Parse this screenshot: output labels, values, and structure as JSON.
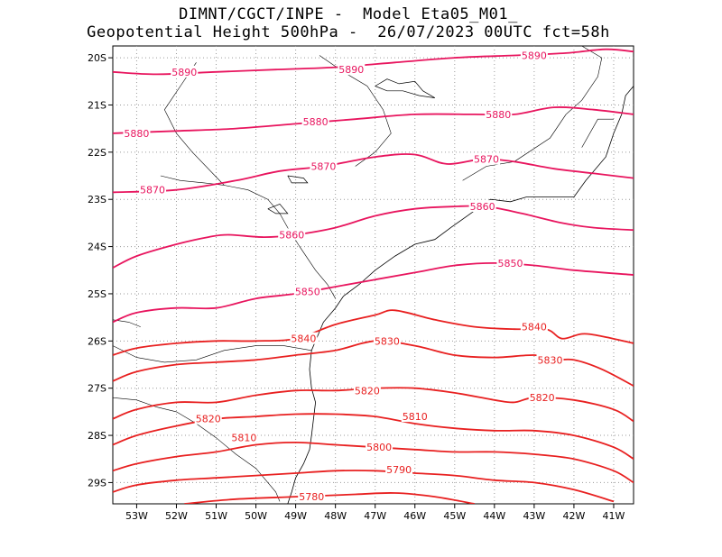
{
  "title": {
    "line1": "DIMNT/CGCT/INPE -  Model Eta05_M01_",
    "line2": "Geopotential Height 500hPa -  26/07/2023 00UTC fct=58h"
  },
  "colors": {
    "magenta": "#e8155e",
    "red": "#e82020",
    "coast": "#000000",
    "grid": "#9a9a9a"
  },
  "map": {
    "lon_range": [
      -53.6,
      -40.5
    ],
    "lat_range": [
      -29.45,
      -19.75
    ],
    "lon_ticks": [
      {
        "v": -53,
        "label": "53W"
      },
      {
        "v": -52,
        "label": "52W"
      },
      {
        "v": -51,
        "label": "51W"
      },
      {
        "v": -50,
        "label": "50W"
      },
      {
        "v": -49,
        "label": "49W"
      },
      {
        "v": -48,
        "label": "48W"
      },
      {
        "v": -47,
        "label": "47W"
      },
      {
        "v": -46,
        "label": "46W"
      },
      {
        "v": -45,
        "label": "45W"
      },
      {
        "v": -44,
        "label": "44W"
      },
      {
        "v": -43,
        "label": "43W"
      },
      {
        "v": -42,
        "label": "42W"
      },
      {
        "v": -41,
        "label": "41W"
      }
    ],
    "lat_ticks": [
      {
        "v": -20,
        "label": "20S"
      },
      {
        "v": -21,
        "label": "21S"
      },
      {
        "v": -22,
        "label": "22S"
      },
      {
        "v": -23,
        "label": "23S"
      },
      {
        "v": -24,
        "label": "24S"
      },
      {
        "v": -25,
        "label": "25S"
      },
      {
        "v": -26,
        "label": "26S"
      },
      {
        "v": -27,
        "label": "27S"
      },
      {
        "v": -28,
        "label": "28S"
      },
      {
        "v": -29,
        "label": "29S"
      }
    ]
  },
  "contours": [
    {
      "value": 5890,
      "color": "magenta",
      "points": [
        [
          -53.6,
          -20.3
        ],
        [
          -52.5,
          -20.35
        ],
        [
          -51,
          -20.3
        ],
        [
          -49.5,
          -20.25
        ],
        [
          -48,
          -20.2
        ],
        [
          -46.5,
          -20.1
        ],
        [
          -45,
          -20.0
        ],
        [
          -43.5,
          -19.95
        ],
        [
          -42.2,
          -19.9
        ],
        [
          -41.2,
          -19.82
        ],
        [
          -40.5,
          -19.87
        ]
      ],
      "labels": [
        {
          "text": "5890",
          "at": [
            -51.8,
            -20.3
          ]
        },
        {
          "text": "5890",
          "at": [
            -47.6,
            -20.25
          ]
        },
        {
          "text": "5890",
          "at": [
            -43.0,
            -19.95
          ]
        }
      ]
    },
    {
      "value": 5880,
      "color": "magenta",
      "points": [
        [
          -53.6,
          -21.6
        ],
        [
          -52,
          -21.55
        ],
        [
          -50.5,
          -21.5
        ],
        [
          -49,
          -21.4
        ],
        [
          -47.5,
          -21.3
        ],
        [
          -46,
          -21.2
        ],
        [
          -44.5,
          -21.2
        ],
        [
          -43.5,
          -21.2
        ],
        [
          -42.5,
          -21.05
        ],
        [
          -41.5,
          -21.1
        ],
        [
          -40.5,
          -21.2
        ]
      ],
      "labels": [
        {
          "text": "5880",
          "at": [
            -53.0,
            -21.6
          ]
        },
        {
          "text": "5880",
          "at": [
            -48.5,
            -21.35
          ]
        },
        {
          "text": "5880",
          "at": [
            -43.9,
            -21.2
          ]
        }
      ]
    },
    {
      "value": 5870,
      "color": "magenta",
      "points": [
        [
          -53.6,
          -22.85
        ],
        [
          -52,
          -22.8
        ],
        [
          -50.5,
          -22.6
        ],
        [
          -49.4,
          -22.4
        ],
        [
          -48.3,
          -22.3
        ],
        [
          -47,
          -22.1
        ],
        [
          -46,
          -22.05
        ],
        [
          -45.2,
          -22.25
        ],
        [
          -44.3,
          -22.15
        ],
        [
          -43.5,
          -22.2
        ],
        [
          -42.5,
          -22.35
        ],
        [
          -41.5,
          -22.45
        ],
        [
          -40.5,
          -22.55
        ]
      ],
      "labels": [
        {
          "text": "5870",
          "at": [
            -52.6,
            -22.8
          ]
        },
        {
          "text": "5870",
          "at": [
            -48.3,
            -22.3
          ]
        },
        {
          "text": "5870",
          "at": [
            -44.2,
            -22.15
          ]
        }
      ]
    },
    {
      "value": 5860,
      "color": "magenta",
      "points": [
        [
          -53.6,
          -24.45
        ],
        [
          -53,
          -24.2
        ],
        [
          -52,
          -23.95
        ],
        [
          -51.2,
          -23.8
        ],
        [
          -50.7,
          -23.75
        ],
        [
          -49.8,
          -23.8
        ],
        [
          -49,
          -23.75
        ],
        [
          -48,
          -23.6
        ],
        [
          -47,
          -23.35
        ],
        [
          -46,
          -23.2
        ],
        [
          -45,
          -23.15
        ],
        [
          -44.2,
          -23.15
        ],
        [
          -43.3,
          -23.3
        ],
        [
          -42.3,
          -23.5
        ],
        [
          -41.5,
          -23.6
        ],
        [
          -40.5,
          -23.65
        ]
      ],
      "labels": [
        {
          "text": "5860",
          "at": [
            -49.1,
            -23.75
          ]
        },
        {
          "text": "5860",
          "at": [
            -44.3,
            -23.15
          ]
        }
      ]
    },
    {
      "value": 5850,
      "color": "magenta",
      "points": [
        [
          -53.6,
          -25.6
        ],
        [
          -53,
          -25.4
        ],
        [
          -52,
          -25.3
        ],
        [
          -51,
          -25.3
        ],
        [
          -50,
          -25.1
        ],
        [
          -49,
          -25.0
        ],
        [
          -48,
          -24.85
        ],
        [
          -47,
          -24.7
        ],
        [
          -46,
          -24.55
        ],
        [
          -45,
          -24.4
        ],
        [
          -44,
          -24.35
        ],
        [
          -43,
          -24.4
        ],
        [
          -42,
          -24.5
        ],
        [
          -40.5,
          -24.6
        ]
      ],
      "labels": [
        {
          "text": "5850",
          "at": [
            -48.7,
            -24.95
          ]
        },
        {
          "text": "5850",
          "at": [
            -43.6,
            -24.35
          ]
        }
      ]
    },
    {
      "value": 5840,
      "color": "red",
      "points": [
        [
          -53.6,
          -26.3
        ],
        [
          -53,
          -26.15
        ],
        [
          -52,
          -26.05
        ],
        [
          -51,
          -26.0
        ],
        [
          -50,
          -26.0
        ],
        [
          -49,
          -25.95
        ],
        [
          -48,
          -25.65
        ],
        [
          -47,
          -25.45
        ],
        [
          -46.5,
          -25.35
        ],
        [
          -45.5,
          -25.55
        ],
        [
          -44.5,
          -25.7
        ],
        [
          -43.5,
          -25.75
        ],
        [
          -42.7,
          -25.75
        ],
        [
          -42.3,
          -25.95
        ],
        [
          -41.8,
          -25.85
        ],
        [
          -41.3,
          -25.9
        ],
        [
          -40.5,
          -26.05
        ]
      ],
      "labels": [
        {
          "text": "5840",
          "at": [
            -48.8,
            -25.95
          ]
        },
        {
          "text": "5840",
          "at": [
            -43.0,
            -25.7
          ]
        }
      ]
    },
    {
      "value": 5830,
      "color": "red",
      "points": [
        [
          -53.6,
          -26.85
        ],
        [
          -53,
          -26.65
        ],
        [
          -52,
          -26.5
        ],
        [
          -51,
          -26.45
        ],
        [
          -50,
          -26.4
        ],
        [
          -49,
          -26.3
        ],
        [
          -48,
          -26.2
        ],
        [
          -47,
          -26.0
        ],
        [
          -46,
          -26.1
        ],
        [
          -45,
          -26.3
        ],
        [
          -44,
          -26.35
        ],
        [
          -43,
          -26.3
        ],
        [
          -42.5,
          -26.4
        ],
        [
          -42,
          -26.4
        ],
        [
          -41.3,
          -26.6
        ],
        [
          -40.5,
          -26.95
        ]
      ],
      "labels": [
        {
          "text": "5830",
          "at": [
            -46.7,
            -26.0
          ]
        },
        {
          "text": "5830",
          "at": [
            -42.6,
            -26.4
          ]
        }
      ]
    },
    {
      "value": 5820,
      "color": "red",
      "points": [
        [
          -53.6,
          -27.65
        ],
        [
          -53,
          -27.45
        ],
        [
          -52,
          -27.3
        ],
        [
          -51,
          -27.3
        ],
        [
          -50,
          -27.15
        ],
        [
          -49,
          -27.05
        ],
        [
          -48,
          -27.05
        ],
        [
          -47,
          -27.0
        ],
        [
          -46,
          -27.0
        ],
        [
          -45,
          -27.1
        ],
        [
          -44,
          -27.25
        ],
        [
          -43.5,
          -27.3
        ],
        [
          -43,
          -27.2
        ],
        [
          -42,
          -27.25
        ],
        [
          -41,
          -27.45
        ],
        [
          -40.5,
          -27.7
        ]
      ],
      "labels": [
        {
          "text": "5820",
          "at": [
            -51.2,
            -27.65
          ]
        },
        {
          "text": "5820",
          "at": [
            -47.2,
            -27.05
          ]
        },
        {
          "text": "5820",
          "at": [
            -42.8,
            -27.2
          ]
        }
      ]
    },
    {
      "value": 5810,
      "color": "red",
      "points": [
        [
          -53.6,
          -28.2
        ],
        [
          -53,
          -28.0
        ],
        [
          -52,
          -27.8
        ],
        [
          -51,
          -27.65
        ],
        [
          -50,
          -27.6
        ],
        [
          -49,
          -27.55
        ],
        [
          -48,
          -27.55
        ],
        [
          -47,
          -27.6
        ],
        [
          -46,
          -27.75
        ],
        [
          -45,
          -27.85
        ],
        [
          -44,
          -27.9
        ],
        [
          -43,
          -27.9
        ],
        [
          -42,
          -28.0
        ],
        [
          -41,
          -28.25
        ],
        [
          -40.5,
          -28.5
        ]
      ],
      "labels": [
        {
          "text": "5810",
          "at": [
            -50.3,
            -28.05
          ]
        },
        {
          "text": "5810",
          "at": [
            -46.0,
            -27.6
          ]
        }
      ]
    },
    {
      "value": 5800,
      "color": "red",
      "points": [
        [
          -53.6,
          -28.75
        ],
        [
          -53,
          -28.6
        ],
        [
          -52,
          -28.45
        ],
        [
          -51,
          -28.35
        ],
        [
          -50,
          -28.2
        ],
        [
          -49,
          -28.15
        ],
        [
          -48,
          -28.2
        ],
        [
          -47,
          -28.25
        ],
        [
          -46,
          -28.3
        ],
        [
          -45,
          -28.35
        ],
        [
          -44,
          -28.35
        ],
        [
          -43,
          -28.4
        ],
        [
          -42,
          -28.5
        ],
        [
          -41,
          -28.75
        ],
        [
          -40.5,
          -29.0
        ]
      ],
      "labels": [
        {
          "text": "5800",
          "at": [
            -46.9,
            -28.25
          ]
        }
      ]
    },
    {
      "value": 5790,
      "color": "red",
      "points": [
        [
          -53.6,
          -29.2
        ],
        [
          -53,
          -29.05
        ],
        [
          -52,
          -28.95
        ],
        [
          -51,
          -28.9
        ],
        [
          -50,
          -28.85
        ],
        [
          -49,
          -28.8
        ],
        [
          -48,
          -28.75
        ],
        [
          -47,
          -28.75
        ],
        [
          -46,
          -28.8
        ],
        [
          -45,
          -28.85
        ],
        [
          -44,
          -28.95
        ],
        [
          -43,
          -29.0
        ],
        [
          -42,
          -29.15
        ],
        [
          -41,
          -29.4
        ]
      ],
      "labels": [
        {
          "text": "5790",
          "at": [
            -46.4,
            -28.72
          ]
        }
      ]
    },
    {
      "value": 5780,
      "color": "red",
      "points": [
        [
          -51.8,
          -29.45
        ],
        [
          -50.5,
          -29.35
        ],
        [
          -49,
          -29.3
        ],
        [
          -47.5,
          -29.25
        ],
        [
          -46.5,
          -29.22
        ],
        [
          -45.5,
          -29.3
        ],
        [
          -44.5,
          -29.45
        ]
      ],
      "labels": [
        {
          "text": "5780",
          "at": [
            -48.6,
            -29.3
          ]
        }
      ]
    }
  ],
  "coastline": [
    [
      -49.2,
      -29.45
    ],
    [
      -49.1,
      -29.2
    ],
    [
      -49.0,
      -28.9
    ],
    [
      -48.8,
      -28.6
    ],
    [
      -48.65,
      -28.3
    ],
    [
      -48.6,
      -28.0
    ],
    [
      -48.55,
      -27.65
    ],
    [
      -48.5,
      -27.3
    ],
    [
      -48.6,
      -27.0
    ],
    [
      -48.65,
      -26.6
    ],
    [
      -48.6,
      -26.2
    ],
    [
      -48.45,
      -25.9
    ],
    [
      -48.3,
      -25.6
    ],
    [
      -48.0,
      -25.3
    ],
    [
      -47.8,
      -25.05
    ],
    [
      -47.4,
      -24.8
    ],
    [
      -47.0,
      -24.5
    ],
    [
      -46.5,
      -24.2
    ],
    [
      -46.0,
      -23.95
    ],
    [
      -45.5,
      -23.85
    ],
    [
      -45.1,
      -23.6
    ],
    [
      -44.6,
      -23.3
    ],
    [
      -44.1,
      -23.0
    ],
    [
      -43.6,
      -23.05
    ],
    [
      -43.2,
      -22.95
    ],
    [
      -42.6,
      -22.95
    ],
    [
      -42.0,
      -22.95
    ],
    [
      -41.7,
      -22.6
    ],
    [
      -41.2,
      -22.1
    ],
    [
      -41.0,
      -21.6
    ],
    [
      -40.8,
      -21.2
    ],
    [
      -40.7,
      -20.8
    ],
    [
      -40.5,
      -20.6
    ]
  ],
  "borders": [
    [
      [
        -52.4,
        -22.5
      ],
      [
        -51.9,
        -22.6
      ],
      [
        -51.3,
        -22.65
      ],
      [
        -50.8,
        -22.7
      ],
      [
        -50.2,
        -22.8
      ],
      [
        -49.7,
        -23.0
      ],
      [
        -49.4,
        -23.3
      ],
      [
        -49.2,
        -23.6
      ],
      [
        -48.9,
        -24.0
      ],
      [
        -48.5,
        -24.5
      ],
      [
        -48.2,
        -24.8
      ],
      [
        -48.0,
        -25.1
      ]
    ],
    [
      [
        -53.6,
        -26.1
      ],
      [
        -53.0,
        -26.35
      ],
      [
        -52.3,
        -26.45
      ],
      [
        -51.5,
        -26.4
      ],
      [
        -50.8,
        -26.2
      ],
      [
        -50.0,
        -26.1
      ],
      [
        -49.3,
        -26.1
      ],
      [
        -48.6,
        -26.2
      ]
    ],
    [
      [
        -53.6,
        -27.2
      ],
      [
        -53.0,
        -27.25
      ],
      [
        -52.5,
        -27.4
      ],
      [
        -52.0,
        -27.5
      ],
      [
        -51.5,
        -27.75
      ],
      [
        -51.0,
        -28.05
      ],
      [
        -50.5,
        -28.4
      ],
      [
        -50.0,
        -28.7
      ],
      [
        -49.7,
        -29.0
      ],
      [
        -49.5,
        -29.2
      ],
      [
        -49.4,
        -29.4
      ]
    ],
    [
      [
        -50.8,
        -22.7
      ],
      [
        -51.6,
        -22.0
      ],
      [
        -52.0,
        -21.6
      ],
      [
        -52.3,
        -21.1
      ],
      [
        -51.9,
        -20.6
      ],
      [
        -51.5,
        -20.1
      ]
    ],
    [
      [
        -47.5,
        -22.3
      ],
      [
        -47.0,
        -22.0
      ],
      [
        -46.6,
        -21.6
      ],
      [
        -46.8,
        -21.1
      ],
      [
        -47.2,
        -20.6
      ],
      [
        -47.8,
        -20.3
      ],
      [
        -48.4,
        -19.95
      ]
    ],
    [
      [
        -44.8,
        -22.6
      ],
      [
        -44.2,
        -22.3
      ],
      [
        -43.5,
        -22.2
      ],
      [
        -42.6,
        -21.7
      ],
      [
        -42.2,
        -21.2
      ],
      [
        -41.8,
        -20.9
      ],
      [
        -41.4,
        -20.4
      ],
      [
        -41.3,
        -20.0
      ],
      [
        -41.8,
        -19.75
      ]
    ],
    [
      [
        -41.8,
        -21.9
      ],
      [
        -41.4,
        -21.3
      ],
      [
        -41.0,
        -21.3
      ]
    ],
    [
      [
        -53.6,
        -25.55
      ],
      [
        -53.2,
        -25.6
      ],
      [
        -52.9,
        -25.7
      ]
    ]
  ],
  "lakes": [
    [
      [
        -47.0,
        -20.6
      ],
      [
        -46.7,
        -20.45
      ],
      [
        -46.4,
        -20.55
      ],
      [
        -46.0,
        -20.5
      ],
      [
        -45.8,
        -20.7
      ],
      [
        -45.5,
        -20.85
      ],
      [
        -45.9,
        -20.8
      ],
      [
        -46.3,
        -20.7
      ],
      [
        -46.7,
        -20.7
      ],
      [
        -47.0,
        -20.6
      ]
    ],
    [
      [
        -49.7,
        -23.2
      ],
      [
        -49.4,
        -23.1
      ],
      [
        -49.2,
        -23.3
      ],
      [
        -49.5,
        -23.3
      ],
      [
        -49.7,
        -23.2
      ]
    ],
    [
      [
        -49.2,
        -22.5
      ],
      [
        -48.8,
        -22.55
      ],
      [
        -48.7,
        -22.65
      ],
      [
        -49.1,
        -22.65
      ],
      [
        -49.2,
        -22.5
      ]
    ]
  ]
}
